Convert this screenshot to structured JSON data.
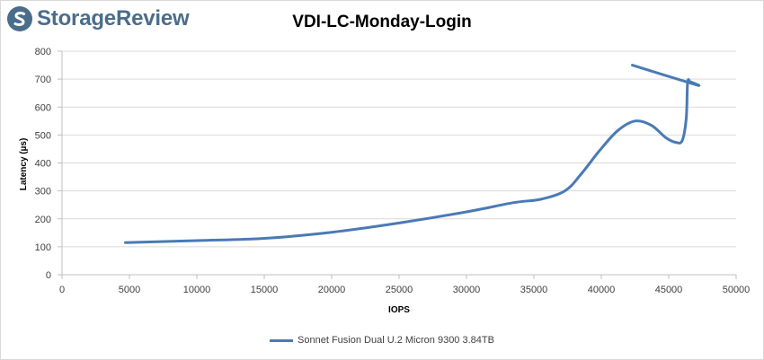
{
  "brand": {
    "name": "StorageReview",
    "color": "#4a6d8c"
  },
  "chart_data": {
    "type": "line",
    "title": "VDI-LC-Monday-Login",
    "xlabel": "IOPS",
    "ylabel": "Latency (µs)",
    "xlim": [
      0,
      50000
    ],
    "ylim": [
      0,
      800
    ],
    "xticks": [
      0,
      5000,
      10000,
      15000,
      20000,
      25000,
      30000,
      35000,
      40000,
      45000,
      50000
    ],
    "yticks": [
      0,
      100,
      200,
      300,
      400,
      500,
      600,
      700,
      800
    ],
    "grid": "horizontal",
    "legend_position": "bottom",
    "series": [
      {
        "name": "Sonnet Fusion Dual U.2 Micron 9300 3.84TB",
        "color": "#4a7ab5",
        "points": [
          [
            4700,
            115
          ],
          [
            10000,
            122
          ],
          [
            15000,
            130
          ],
          [
            20000,
            152
          ],
          [
            25000,
            185
          ],
          [
            30000,
            225
          ],
          [
            33500,
            258
          ],
          [
            35500,
            270
          ],
          [
            37300,
            300
          ],
          [
            38500,
            360
          ],
          [
            39800,
            440
          ],
          [
            41200,
            515
          ],
          [
            42500,
            550
          ],
          [
            43700,
            535
          ],
          [
            44800,
            490
          ],
          [
            45500,
            474
          ],
          [
            46000,
            480
          ],
          [
            46300,
            560
          ],
          [
            46400,
            688
          ],
          [
            46600,
            690
          ],
          [
            47000,
            680
          ],
          [
            42300,
            750
          ]
        ]
      }
    ]
  }
}
